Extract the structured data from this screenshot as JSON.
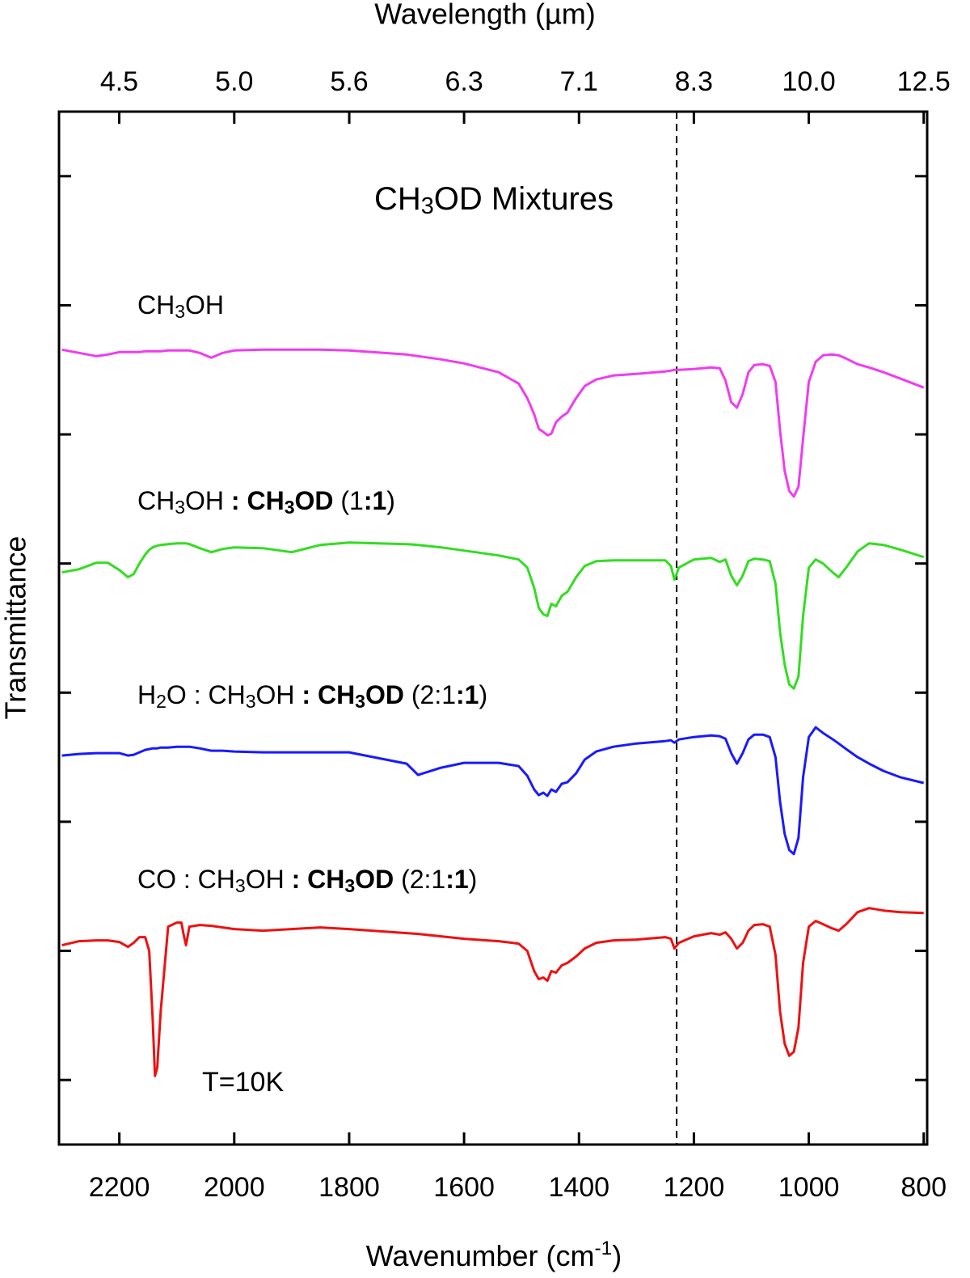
{
  "chart_data": {
    "type": "line",
    "title": [
      {
        "text": "CH"
      },
      {
        "text": "3",
        "sub": true
      },
      {
        "text": "OD  Mixtures"
      }
    ],
    "x_label": [
      {
        "text": "Wavenumber (cm"
      },
      {
        "text": "-1",
        "sup": true
      },
      {
        "text": ")"
      }
    ],
    "x2_label": "Wavelength (µm)",
    "y_label": "Transmittance",
    "annotation": "T=10K",
    "xlim": [
      2305,
      794
    ],
    "xticks": [
      2200,
      2000,
      1800,
      1600,
      1400,
      1200,
      1000,
      800
    ],
    "x2ticks": [
      {
        "value": 4.545,
        "label": "4.5"
      },
      {
        "value": 5.0,
        "label": "5.0"
      },
      {
        "value": 5.556,
        "label": "5.6"
      },
      {
        "value": 6.25,
        "label": "6.3"
      },
      {
        "value": 7.143,
        "label": "7.1"
      },
      {
        "value": 8.333,
        "label": "8.3"
      },
      {
        "value": 10.0,
        "label": "10.0"
      },
      {
        "value": 12.5,
        "label": "12.5"
      }
    ],
    "x2_scale": "reciprocal",
    "ylim": [
      0,
      1280
    ],
    "yticks": [
      80,
      240,
      400,
      560,
      720,
      880,
      1040,
      1200
    ],
    "ytick_labels": false,
    "vlines": [
      {
        "value": 1230,
        "style": "dashed"
      }
    ],
    "x": [
      2300,
      2270,
      2240,
      2220,
      2200,
      2185,
      2175,
      2165,
      2155,
      2148,
      2142,
      2138,
      2134,
      2128,
      2115,
      2100,
      2092,
      2088,
      2084,
      2078,
      2060,
      2040,
      2020,
      2000,
      1950,
      1900,
      1850,
      1800,
      1700,
      1680,
      1640,
      1600,
      1540,
      1505,
      1490,
      1478,
      1470,
      1462,
      1455,
      1448,
      1440,
      1430,
      1420,
      1405,
      1390,
      1370,
      1340,
      1300,
      1250,
      1240,
      1234,
      1226,
      1200,
      1170,
      1155,
      1145,
      1135,
      1125,
      1115,
      1105,
      1095,
      1080,
      1068,
      1058,
      1050,
      1042,
      1034,
      1026,
      1018,
      1010,
      1000,
      988,
      975,
      960,
      948,
      935,
      915,
      895,
      870,
      840,
      800
    ],
    "series": [
      {
        "name": [
          {
            "text": "CH"
          },
          {
            "text": "3",
            "sub": true
          },
          {
            "text": "OH"
          }
        ],
        "color": "#f03cf0",
        "values": [
          985,
          981,
          977,
          979,
          982,
          982,
          982,
          982,
          983,
          983,
          983,
          983,
          983,
          983,
          984,
          984,
          984,
          984,
          984,
          984,
          981,
          975,
          981,
          984,
          985,
          985,
          985,
          984,
          979,
          977,
          973,
          968,
          957,
          943,
          925,
          905,
          887,
          883,
          879,
          881,
          895,
          902,
          907,
          925,
          940,
          948,
          953,
          955,
          958,
          959,
          960,
          960,
          961,
          963,
          962,
          947,
          920,
          913,
          930,
          957,
          966,
          967,
          965,
          945,
          885,
          835,
          810,
          803,
          815,
          875,
          945,
          970,
          978,
          979,
          978,
          974,
          967,
          963,
          957,
          949,
          938
        ]
      },
      {
        "name": [
          {
            "text": "CH"
          },
          {
            "text": "3",
            "sub": true
          },
          {
            "text": "OH "
          },
          {
            "text": ": CH",
            "bold": true
          },
          {
            "text": "3",
            "sub": true,
            "bold": true
          },
          {
            "text": "OD",
            "bold": true
          },
          {
            "text": " (1"
          },
          {
            "text": ":1",
            "bold": true
          },
          {
            "text": ")"
          }
        ],
        "color": "#33dd22",
        "values": [
          709,
          713,
          721,
          721,
          712,
          703,
          707,
          720,
          731,
          737,
          740,
          741,
          742,
          743,
          744,
          745,
          745,
          745,
          745,
          744,
          739,
          734,
          738,
          740,
          739,
          734,
          743,
          746,
          744,
          743,
          740,
          736,
          730,
          725,
          715,
          690,
          665,
          657,
          655,
          670,
          667,
          680,
          685,
          703,
          717,
          723,
          724,
          724,
          724,
          717,
          700,
          715,
          725,
          727,
          722,
          725,
          705,
          693,
          705,
          723,
          726,
          725,
          723,
          695,
          635,
          595,
          570,
          565,
          580,
          655,
          715,
          725,
          720,
          710,
          703,
          715,
          735,
          745,
          743,
          737,
          728
        ]
      },
      {
        "name": [
          {
            "text": "H"
          },
          {
            "text": "2",
            "sub": true
          },
          {
            "text": "O : CH"
          },
          {
            "text": "3",
            "sub": true
          },
          {
            "text": "OH "
          },
          {
            "text": ": CH",
            "bold": true
          },
          {
            "text": "3",
            "sub": true,
            "bold": true
          },
          {
            "text": "OD",
            "bold": true
          },
          {
            "text": " (2:1"
          },
          {
            "text": ":1",
            "bold": true
          },
          {
            "text": ")"
          }
        ],
        "color": "#1a1aff",
        "values": [
          482,
          484,
          485,
          485,
          485,
          482,
          483,
          486,
          489,
          490,
          491,
          491,
          491,
          492,
          492,
          493,
          493,
          493,
          493,
          493,
          491,
          488,
          488,
          487,
          486,
          486,
          486,
          486,
          472,
          458,
          467,
          473,
          473,
          469,
          457,
          440,
          433,
          436,
          432,
          440,
          437,
          447,
          449,
          460,
          477,
          487,
          493,
          497,
          500,
          501,
          498,
          502,
          505,
          507,
          506,
          503,
          485,
          472,
          485,
          502,
          508,
          508,
          505,
          480,
          425,
          385,
          365,
          360,
          380,
          455,
          505,
          517,
          510,
          503,
          497,
          490,
          480,
          472,
          463,
          455,
          448
        ]
      },
      {
        "name": [
          {
            "text": "CO : CH"
          },
          {
            "text": "3",
            "sub": true
          },
          {
            "text": "OH "
          },
          {
            "text": ": CH",
            "bold": true
          },
          {
            "text": "3",
            "sub": true,
            "bold": true
          },
          {
            "text": "OD",
            "bold": true
          },
          {
            "text": " (2:1"
          },
          {
            "text": ":1",
            "bold": true
          },
          {
            "text": ")"
          }
        ],
        "color": "#ee1111",
        "values": [
          247,
          252,
          253,
          253,
          251,
          245,
          250,
          257,
          257,
          240,
          155,
          85,
          95,
          165,
          270,
          275,
          275,
          260,
          247,
          270,
          272,
          271,
          269,
          267,
          265,
          267,
          269,
          267,
          262,
          261,
          258,
          255,
          252,
          249,
          240,
          215,
          205,
          207,
          203,
          215,
          213,
          222,
          225,
          233,
          243,
          250,
          253,
          254,
          257,
          255,
          243,
          250,
          258,
          262,
          260,
          263,
          255,
          243,
          250,
          265,
          272,
          273,
          270,
          235,
          165,
          125,
          110,
          115,
          145,
          225,
          270,
          277,
          273,
          268,
          265,
          273,
          288,
          293,
          290,
          288,
          287
        ]
      }
    ]
  }
}
